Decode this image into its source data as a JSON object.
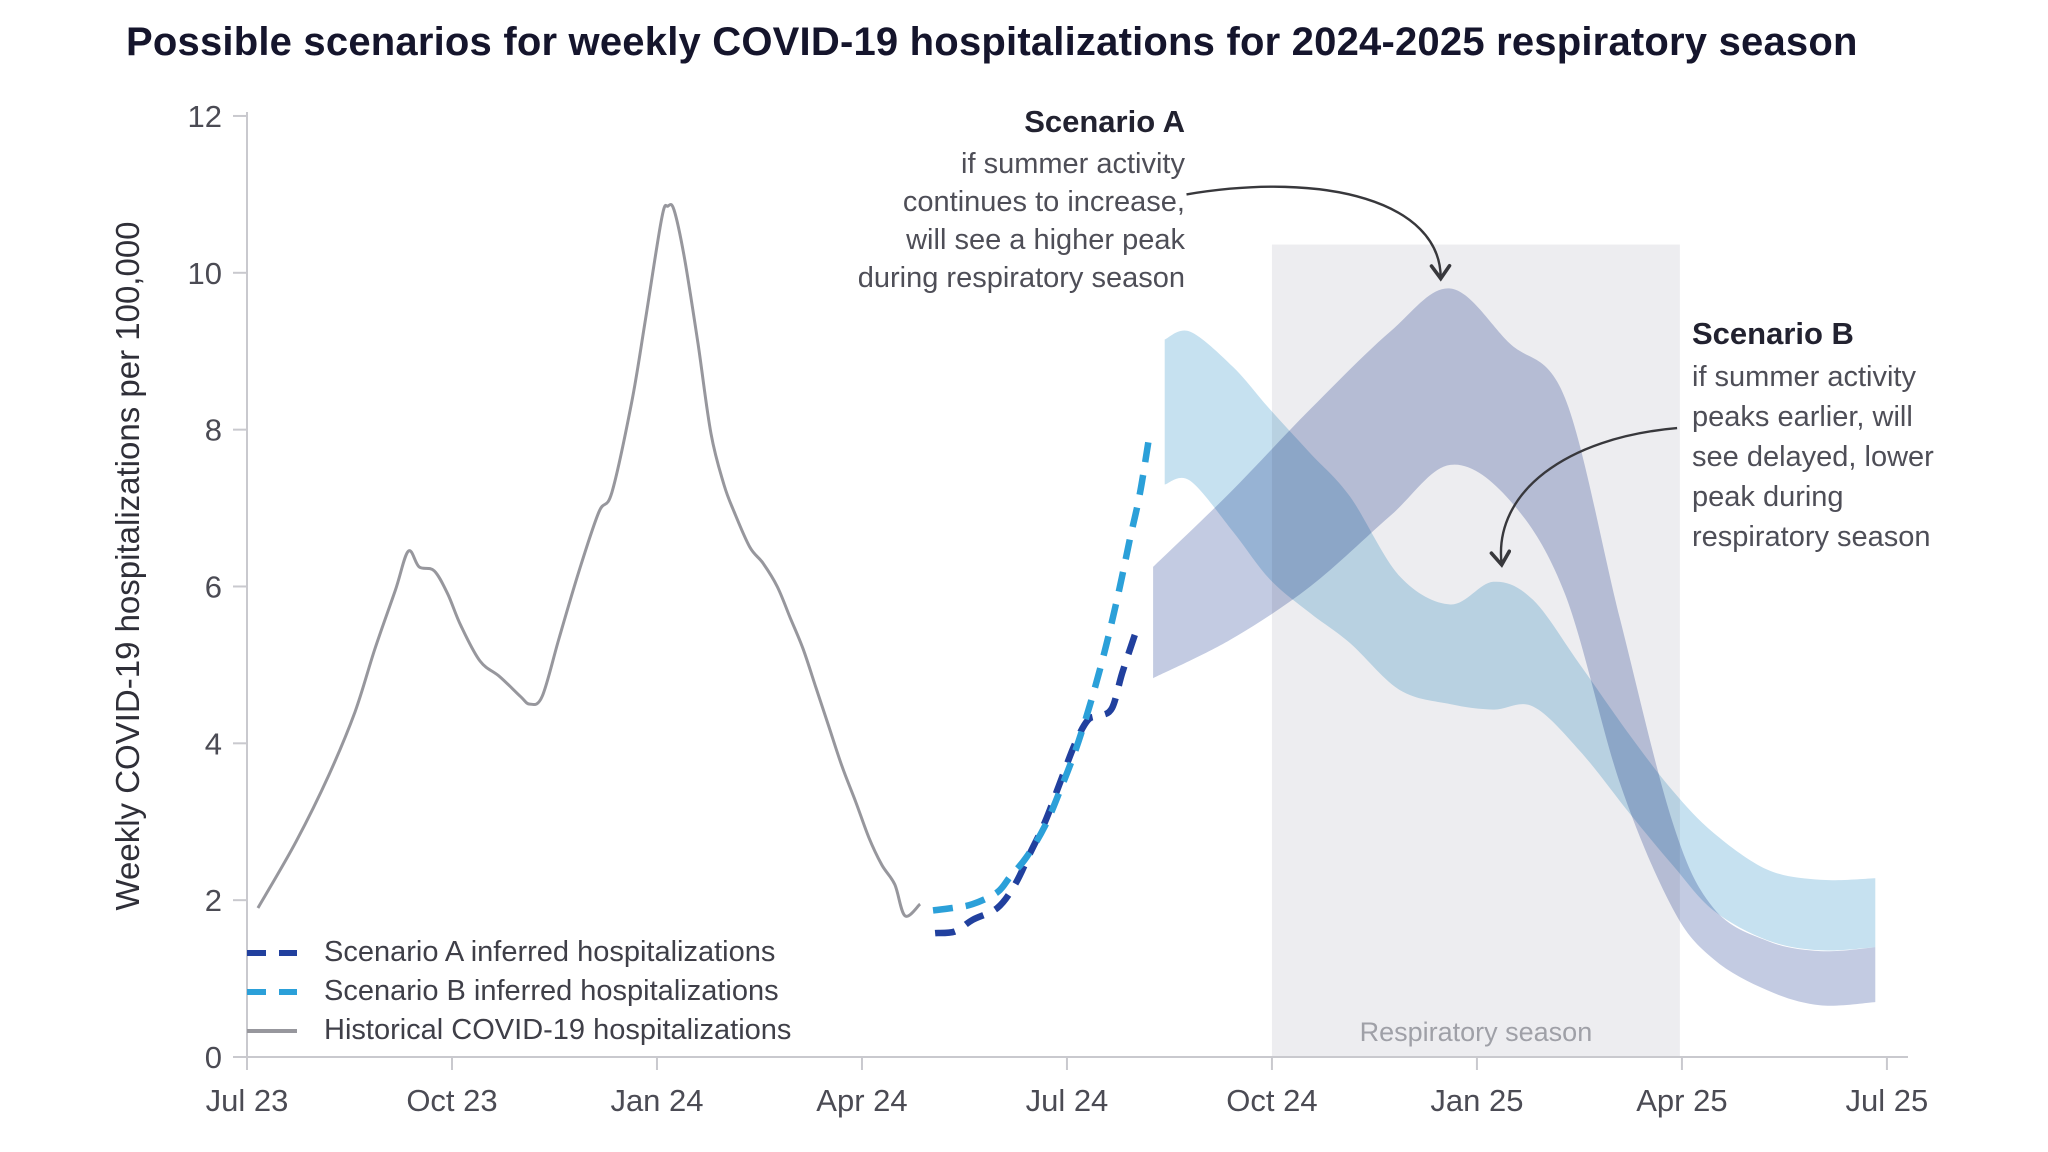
{
  "title": "Possible scenarios for weekly COVID-19 hospitalizations for 2024-2025 respiratory season",
  "axes": {
    "y_label": "Weekly COVID-19 hospitalizations per 100,000",
    "y_ticks": [
      "0",
      "2",
      "4",
      "6",
      "8",
      "10",
      "12"
    ],
    "x_tick_labels": [
      "Jul 23",
      "Oct 23",
      "Jan 24",
      "Apr 24",
      "Jul 24",
      "Oct 24",
      "Jan 25",
      "Apr 25",
      "Jul 25"
    ]
  },
  "legend": [
    {
      "label": "Scenario A inferred hospitalizations",
      "style": "dashed",
      "color": "#21409e"
    },
    {
      "label": "Scenario B inferred hospitalizations",
      "style": "dashed",
      "color": "#2ba0d9"
    },
    {
      "label": "Historical COVID-19 hospitalizations",
      "style": "solid",
      "color": "#97979d"
    }
  ],
  "annotations": {
    "a": {
      "heading": "Scenario A",
      "lines": [
        "if summer activity",
        "continues to increase,",
        "will see a higher peak",
        "during respiratory season"
      ],
      "arrow": {
        "points": [
          [
            13.75,
            11.0
          ],
          [
            15.8,
            11.3
          ],
          [
            17.45,
            10.9
          ],
          [
            17.47,
            9.95
          ]
        ]
      }
    },
    "b": {
      "heading": "Scenario B",
      "lines": [
        "if summer activity",
        "peaks earlier, will",
        "see delayed, lower",
        "peak during",
        "respiratory season"
      ],
      "arrow": {
        "points": [
          [
            20.93,
            8.02
          ],
          [
            19.3,
            7.9
          ],
          [
            18.25,
            7.2
          ],
          [
            18.36,
            6.3
          ]
        ]
      }
    }
  },
  "colors": {
    "scenario_a_line": "#21409e",
    "scenario_b_line": "#2ba0d9",
    "historical_line": "#97979d",
    "scenario_a_band": "#c3cbe2",
    "scenario_b_band": "#c6e1f0",
    "season_rect": "#ededf0",
    "axis": "#c9c9ce",
    "tick_text": "#4b4b54",
    "season_text": "#9fa0a7",
    "arrow": "#38383c"
  },
  "chart_data": {
    "type": "line",
    "title": "Possible scenarios for weekly COVID-19 hospitalizations for 2024-2025 respiratory season",
    "xlabel": "",
    "ylabel": "Weekly COVID-19 hospitalizations per 100,000",
    "x_unit": "months since Jul 2023",
    "ylim": [
      0,
      12
    ],
    "y_ticks": [
      0,
      2,
      4,
      6,
      8,
      10,
      12
    ],
    "x_ticks": {
      "months": [
        0,
        3,
        6,
        9,
        12,
        15,
        18,
        21,
        24
      ],
      "labels": [
        "Jul 23",
        "Oct 23",
        "Jan 24",
        "Apr 24",
        "Jul 24",
        "Oct 24",
        "Jan 25",
        "Apr 25",
        "Jul 25"
      ]
    },
    "grid": false,
    "legend_position": "lower-left inside plot",
    "series": [
      {
        "name": "Historical COVID-19 hospitalizations",
        "style": "solid",
        "points": [
          [
            0.16,
            1.9
          ],
          [
            0.72,
            2.75
          ],
          [
            1.2,
            3.6
          ],
          [
            1.58,
            4.4
          ],
          [
            1.87,
            5.2
          ],
          [
            2.17,
            5.95
          ],
          [
            2.36,
            6.45
          ],
          [
            2.52,
            6.25
          ],
          [
            2.74,
            6.2
          ],
          [
            2.94,
            5.9
          ],
          [
            3.13,
            5.5
          ],
          [
            3.41,
            5.05
          ],
          [
            3.7,
            4.85
          ],
          [
            4.0,
            4.6
          ],
          [
            4.14,
            4.5
          ],
          [
            4.32,
            4.6
          ],
          [
            4.57,
            5.35
          ],
          [
            4.86,
            6.2
          ],
          [
            5.15,
            6.95
          ],
          [
            5.34,
            7.2
          ],
          [
            5.63,
            8.35
          ],
          [
            5.83,
            9.4
          ],
          [
            6.07,
            10.7
          ],
          [
            6.16,
            10.85
          ],
          [
            6.25,
            10.8
          ],
          [
            6.4,
            10.2
          ],
          [
            6.6,
            9.1
          ],
          [
            6.79,
            7.95
          ],
          [
            6.98,
            7.3
          ],
          [
            7.13,
            6.95
          ],
          [
            7.36,
            6.5
          ],
          [
            7.55,
            6.3
          ],
          [
            7.76,
            6.0
          ],
          [
            7.95,
            5.6
          ],
          [
            8.14,
            5.2
          ],
          [
            8.33,
            4.7
          ],
          [
            8.52,
            4.2
          ],
          [
            8.71,
            3.7
          ],
          [
            8.91,
            3.25
          ],
          [
            9.1,
            2.8
          ],
          [
            9.29,
            2.45
          ],
          [
            9.48,
            2.2
          ],
          [
            9.63,
            1.8
          ],
          [
            9.85,
            1.95
          ]
        ]
      },
      {
        "name": "Scenario A inferred hospitalizations",
        "style": "dashed",
        "points": [
          [
            10.07,
            1.58
          ],
          [
            10.36,
            1.6
          ],
          [
            10.62,
            1.75
          ],
          [
            10.98,
            1.9
          ],
          [
            11.24,
            2.2
          ],
          [
            11.46,
            2.6
          ],
          [
            11.68,
            3.0
          ],
          [
            11.9,
            3.5
          ],
          [
            12.12,
            4.0
          ],
          [
            12.31,
            4.3
          ],
          [
            12.48,
            4.35
          ],
          [
            12.66,
            4.45
          ],
          [
            12.81,
            4.9
          ],
          [
            13.0,
            5.4
          ]
        ]
      },
      {
        "name": "Scenario B inferred hospitalizations",
        "style": "dashed",
        "points": [
          [
            10.04,
            1.87
          ],
          [
            10.32,
            1.9
          ],
          [
            10.62,
            1.95
          ],
          [
            10.98,
            2.1
          ],
          [
            11.17,
            2.3
          ],
          [
            11.41,
            2.55
          ],
          [
            11.68,
            2.95
          ],
          [
            11.9,
            3.4
          ],
          [
            12.12,
            3.9
          ],
          [
            12.34,
            4.5
          ],
          [
            12.56,
            5.2
          ],
          [
            12.75,
            5.9
          ],
          [
            12.92,
            6.6
          ],
          [
            13.07,
            7.2
          ],
          [
            13.22,
            8.0
          ]
        ]
      }
    ],
    "bands": [
      {
        "name": "Scenario A projection band",
        "x": [
          13.26,
          14.39,
          15.56,
          16.73,
          17.61,
          18.48,
          19.29,
          20.09,
          20.86,
          21.46,
          22.25,
          23.02,
          23.83
        ],
        "top": [
          6.25,
          7.2,
          8.26,
          9.25,
          9.8,
          9.1,
          8.4,
          5.6,
          3.0,
          1.9,
          1.48,
          1.35,
          1.4
        ],
        "bottom": [
          4.83,
          5.32,
          6.0,
          6.9,
          7.55,
          7.1,
          5.9,
          3.5,
          1.9,
          1.25,
          0.85,
          0.66,
          0.7
        ]
      },
      {
        "name": "Scenario B projection band",
        "x": [
          13.43,
          13.8,
          14.43,
          14.97,
          15.56,
          16.14,
          16.87,
          17.61,
          18.24,
          18.82,
          19.51,
          20.24,
          20.86,
          21.46,
          22.25,
          23.02,
          23.83
        ],
        "top": [
          9.15,
          9.25,
          8.8,
          8.26,
          7.7,
          7.15,
          6.13,
          5.77,
          6.06,
          5.83,
          5.0,
          4.1,
          3.4,
          2.86,
          2.39,
          2.26,
          2.28
        ],
        "bottom": [
          7.3,
          7.35,
          6.7,
          6.09,
          5.66,
          5.28,
          4.68,
          4.5,
          4.43,
          4.47,
          3.9,
          3.1,
          2.45,
          1.87,
          1.49,
          1.36,
          1.4
        ]
      }
    ],
    "season_band": {
      "label": "Respiratory season",
      "x_start_m": 15.0,
      "x_end_m": 20.97,
      "y_top": 10.36
    }
  }
}
